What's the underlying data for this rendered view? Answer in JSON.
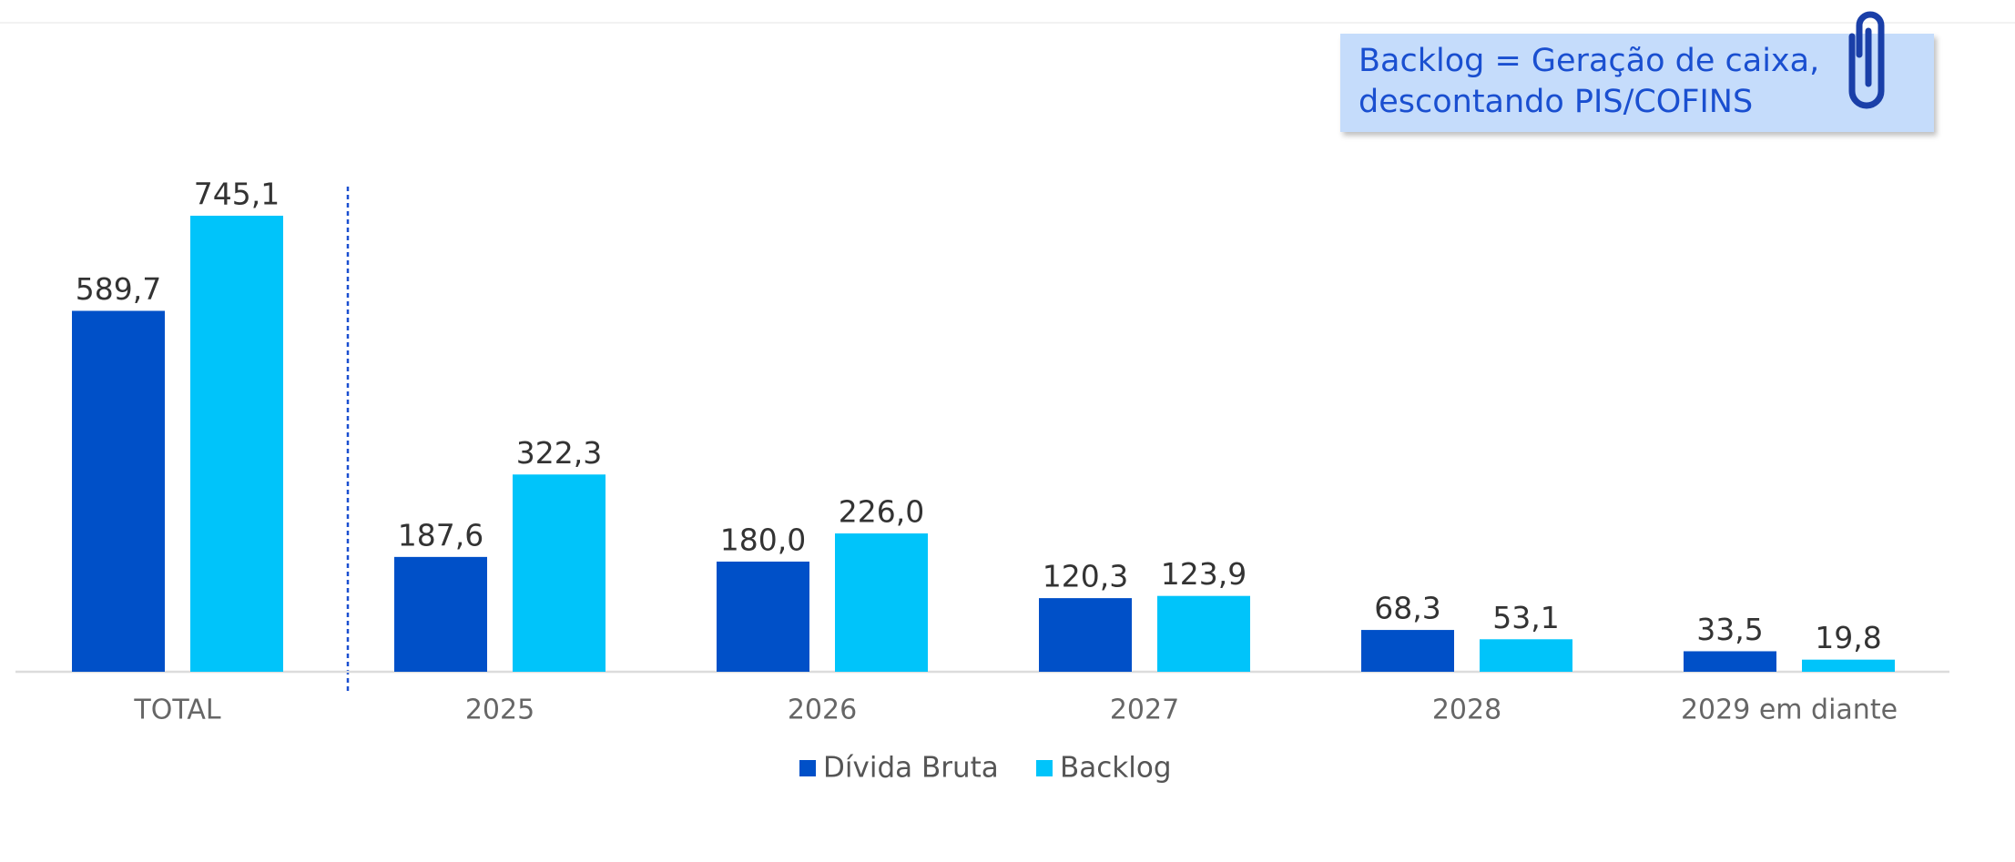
{
  "chart_data": {
    "type": "bar",
    "annotation": [
      "Backlog = Geração de caixa,",
      "descontando PIS/COFINS"
    ],
    "categories": [
      "TOTAL",
      "2025",
      "2026",
      "2027",
      "2028",
      "2029 em diante"
    ],
    "series": [
      {
        "name": "Dívida Bruta",
        "color": "#0050c8",
        "values": [
          589.7,
          187.6,
          180.0,
          120.3,
          68.3,
          33.5
        ],
        "value_labels": [
          "589,7",
          "187,6",
          "180,0",
          "120,3",
          "68,3",
          "33,5"
        ]
      },
      {
        "name": "Backlog",
        "color": "#00c4fa",
        "values": [
          745.1,
          322.3,
          226.0,
          123.9,
          53.1,
          19.8
        ],
        "value_labels": [
          "745,1",
          "322,3",
          "226,0",
          "123,9",
          "53,1",
          "19,8"
        ]
      }
    ],
    "legend": "bottom"
  }
}
